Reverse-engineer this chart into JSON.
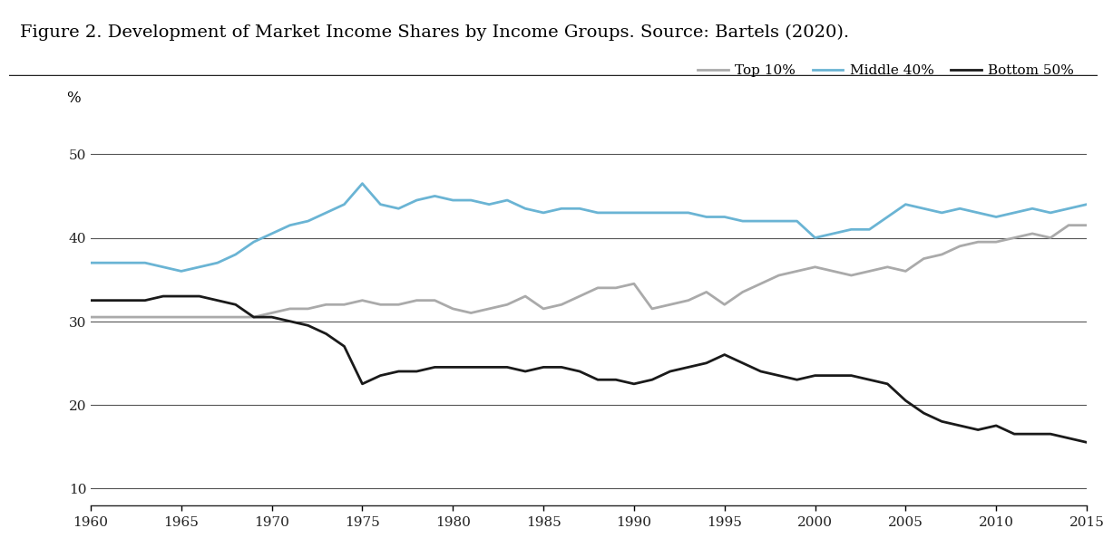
{
  "title": "Figure 2. Development of Market Income Shares by Income Groups. Source: Bartels (2020).",
  "ylabel": "%",
  "years": [
    1960,
    1961,
    1962,
    1963,
    1964,
    1965,
    1966,
    1967,
    1968,
    1969,
    1970,
    1971,
    1972,
    1973,
    1974,
    1975,
    1976,
    1977,
    1978,
    1979,
    1980,
    1981,
    1982,
    1983,
    1984,
    1985,
    1986,
    1987,
    1988,
    1989,
    1990,
    1991,
    1992,
    1993,
    1994,
    1995,
    1996,
    1997,
    1998,
    1999,
    2000,
    2001,
    2002,
    2003,
    2004,
    2005,
    2006,
    2007,
    2008,
    2009,
    2010,
    2011,
    2012,
    2013,
    2014,
    2015
  ],
  "top10": [
    30.5,
    30.5,
    30.5,
    30.5,
    30.5,
    30.5,
    30.5,
    30.5,
    30.5,
    30.5,
    31.0,
    31.5,
    31.5,
    32.0,
    32.0,
    32.5,
    32.0,
    32.0,
    32.5,
    32.5,
    31.5,
    31.0,
    31.5,
    32.0,
    33.0,
    31.5,
    32.0,
    33.0,
    34.0,
    34.0,
    34.5,
    31.5,
    32.0,
    32.5,
    33.5,
    32.0,
    33.5,
    34.5,
    35.5,
    36.0,
    36.5,
    36.0,
    35.5,
    36.0,
    36.5,
    36.0,
    37.5,
    38.0,
    39.0,
    39.5,
    39.5,
    40.0,
    40.5,
    40.0,
    41.5,
    41.5
  ],
  "middle40": [
    37.0,
    37.0,
    37.0,
    37.0,
    36.5,
    36.0,
    36.5,
    37.0,
    38.0,
    39.5,
    40.5,
    41.5,
    42.0,
    43.0,
    44.0,
    46.5,
    44.0,
    43.5,
    44.5,
    45.0,
    44.5,
    44.5,
    44.0,
    44.5,
    43.5,
    43.0,
    43.5,
    43.5,
    43.0,
    43.0,
    43.0,
    43.0,
    43.0,
    43.0,
    42.5,
    42.5,
    42.0,
    42.0,
    42.0,
    42.0,
    40.0,
    40.5,
    41.0,
    41.0,
    42.5,
    44.0,
    43.5,
    43.0,
    43.5,
    43.0,
    42.5,
    43.0,
    43.5,
    43.0,
    43.5,
    44.0
  ],
  "bottom50": [
    32.5,
    32.5,
    32.5,
    32.5,
    33.0,
    33.0,
    33.0,
    32.5,
    32.0,
    30.5,
    30.5,
    30.0,
    29.5,
    28.5,
    27.0,
    22.5,
    23.5,
    24.0,
    24.0,
    24.5,
    24.5,
    24.5,
    24.5,
    24.5,
    24.0,
    24.5,
    24.5,
    24.0,
    23.0,
    23.0,
    22.5,
    23.0,
    24.0,
    24.5,
    25.0,
    26.0,
    25.0,
    24.0,
    23.5,
    23.0,
    23.5,
    23.5,
    23.5,
    23.0,
    22.5,
    20.5,
    19.0,
    18.0,
    17.5,
    17.0,
    17.5,
    16.5,
    16.5,
    16.5,
    16.0,
    15.5
  ],
  "top10_color": "#aaaaaa",
  "middle40_color": "#6ab4d4",
  "bottom50_color": "#1a1a1a",
  "top10_label": "Top 10%",
  "middle40_label": "Middle 40%",
  "bottom50_label": "Bottom 50%",
  "ylim": [
    8,
    54
  ],
  "yticks": [
    10,
    20,
    30,
    40,
    50
  ],
  "xticks": [
    1960,
    1965,
    1970,
    1975,
    1980,
    1985,
    1990,
    1995,
    2000,
    2005,
    2010,
    2015
  ],
  "background_color": "#ffffff",
  "line_width": 2.0,
  "title_fontsize": 14,
  "tick_fontsize": 11,
  "legend_fontsize": 11
}
